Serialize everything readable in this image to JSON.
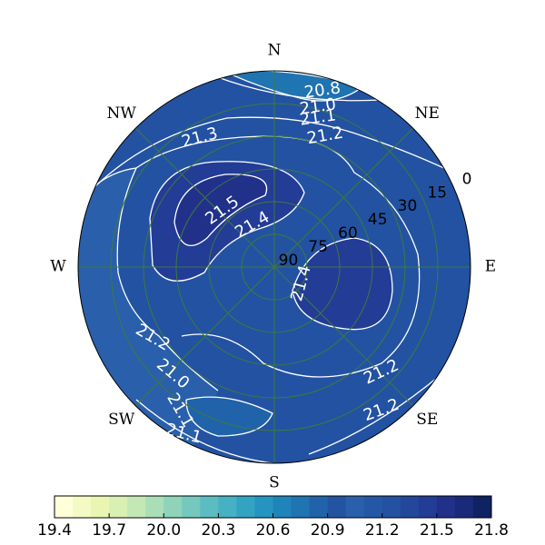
{
  "chart_data": {
    "type": "polar_contour",
    "directions": [
      "N",
      "NE",
      "E",
      "SE",
      "S",
      "SW",
      "W",
      "NW"
    ],
    "rticks": [
      0,
      15,
      30,
      45,
      60,
      75,
      90
    ],
    "contour_labels": [
      "20.8",
      "21.0",
      "21.1",
      "21.2",
      "21.3",
      "21.5",
      "21.4",
      "21.4",
      "21.2",
      "21.0",
      "21.1",
      "21.1",
      "21.2",
      "21.2"
    ],
    "colorbar": {
      "levels": [
        19.4,
        19.5,
        19.6,
        19.7,
        19.8,
        19.9,
        20,
        20.1,
        20.2,
        20.3,
        20.4,
        20.5,
        20.6,
        20.7,
        20.8,
        20.9,
        21,
        21.1,
        21.2,
        21.3,
        21.4,
        21.5,
        21.6,
        21.7,
        21.8
      ],
      "colors": [
        "#ffffd9",
        "#f4fac4",
        "#e9f6b2",
        "#d9f0b3",
        "#c4e8b5",
        "#aadeb7",
        "#8ed3ba",
        "#74c8bd",
        "#5bbdc1",
        "#45b1c2",
        "#33a3c2",
        "#2594c0",
        "#1f84ba",
        "#1f74b2",
        "#2163aa",
        "#2354a2",
        "#2a5fab",
        "#2458a6",
        "#2352a2",
        "#22479b",
        "#233c96",
        "#21318a",
        "#1a2a7a",
        "#0f2262",
        "#081d58"
      ],
      "ticks": [
        19.4,
        19.7,
        {
          "value": 20,
          "label": "20.0"
        },
        20.3,
        20.6,
        20.9,
        21.2,
        21.5,
        21.8
      ]
    }
  }
}
